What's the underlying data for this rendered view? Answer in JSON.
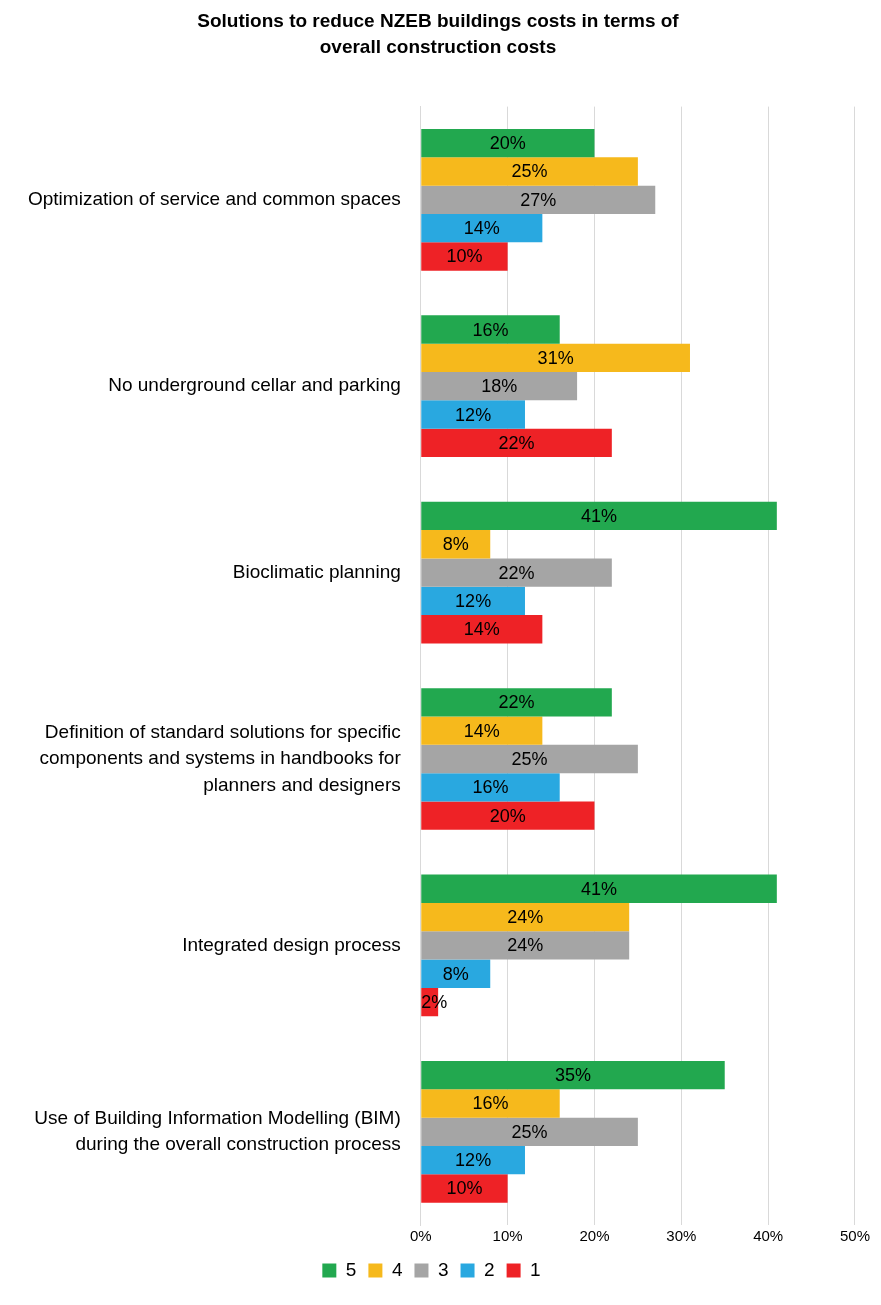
{
  "chart_data": {
    "type": "bar",
    "orientation": "horizontal",
    "title": "Solutions to reduce NZEB buildings costs in terms of overall construction costs",
    "categories": [
      "Optimization of service and common spaces",
      "No underground cellar and parking",
      "Bioclimatic planning",
      "Definition of standard solutions for specific components and systems in handbooks for planners and designers",
      "Integrated design process",
      "Use of Building Information Modelling (BIM) during the overall construction process"
    ],
    "series": [
      {
        "name": "5",
        "color": "#22a84f",
        "values": [
          20,
          16,
          41,
          22,
          41,
          35
        ],
        "value_labels": [
          "20%",
          "16%",
          "41%",
          "22%",
          "41%",
          "35%"
        ]
      },
      {
        "name": "4",
        "color": "#f6b91c",
        "values": [
          25,
          31,
          8,
          14,
          24,
          16
        ],
        "value_labels": [
          "25%",
          "31%",
          "8%",
          "14%",
          "24%",
          "16%"
        ]
      },
      {
        "name": "3",
        "color": "#a5a5a5",
        "values": [
          27,
          18,
          22,
          25,
          24,
          25
        ],
        "value_labels": [
          "27%",
          "18%",
          "22%",
          "25%",
          "24%",
          "25%"
        ]
      },
      {
        "name": "2",
        "color": "#29a8e0",
        "values": [
          14,
          12,
          12,
          16,
          8,
          12
        ],
        "value_labels": [
          "14%",
          "12%",
          "12%",
          "16%",
          "8%",
          "12%"
        ]
      },
      {
        "name": "1",
        "color": "#ee2226",
        "values": [
          10,
          22,
          14,
          20,
          2,
          10
        ],
        "value_labels": [
          "10%",
          "22%",
          "14%",
          "20%",
          "2%",
          "10%"
        ]
      }
    ],
    "xlim": [
      0,
      50
    ],
    "xticks": [
      {
        "value": 0,
        "label": "0%"
      },
      {
        "value": 10,
        "label": "10%"
      },
      {
        "value": 20,
        "label": "20%"
      },
      {
        "value": 30,
        "label": "30%"
      },
      {
        "value": 40,
        "label": "40%"
      },
      {
        "value": 50,
        "label": "50%"
      }
    ],
    "grid": "x",
    "legend": "bottom"
  }
}
